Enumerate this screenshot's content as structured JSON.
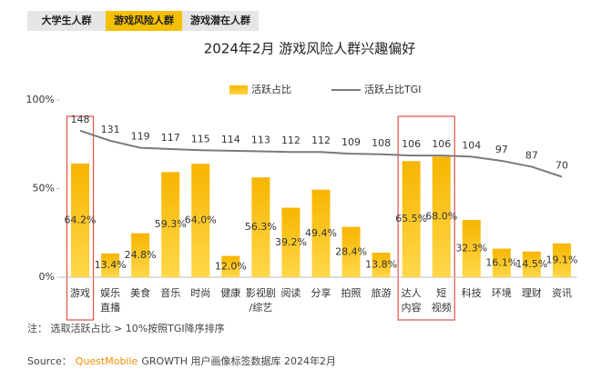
{
  "tabs": [
    "大学生人群",
    "游戏风险人群",
    "游戏潜在人群"
  ],
  "active_tab": 1,
  "chart_data": {
    "type": "bar-line",
    "title": "2024年2月 游戏风险人群兴趣偏好",
    "categories": [
      "游戏",
      "娱乐\n直播",
      "美食",
      "音乐",
      "时尚",
      "健康",
      "影视剧\n/综艺",
      "阅读",
      "分享",
      "拍照",
      "旅游",
      "达人\n内容",
      "短\n视频",
      "科技",
      "环境",
      "理财",
      "资讯"
    ],
    "series": [
      {
        "name": "活跃占比",
        "color": "#f7b500",
        "type": "bar",
        "values": [
          64.2,
          13.4,
          24.8,
          59.3,
          64.0,
          12.0,
          56.3,
          39.2,
          49.4,
          28.4,
          13.8,
          65.5,
          68.0,
          32.3,
          16.1,
          14.5,
          19.1
        ],
        "value_labels": [
          "64.2%",
          "13.4%",
          "24.8%",
          "59.3%",
          "64.0%",
          "12.0%",
          "56.3%",
          "39.2%",
          "49.4%",
          "28.4%",
          "13.8%",
          "65.5%",
          "68.0%",
          "32.3%",
          "16.1%",
          "14.5%",
          "19.1%"
        ]
      },
      {
        "name": "活跃占比TGI",
        "color": "#7a7a7a",
        "type": "line",
        "axis": "y2",
        "values": [
          148,
          131,
          119,
          117,
          115,
          114,
          113,
          112,
          112,
          109,
          108,
          106,
          106,
          104,
          97,
          87,
          70
        ]
      }
    ],
    "ylim": [
      0,
      100
    ],
    "yticks": [
      {
        "value": 0,
        "label": "0%"
      },
      {
        "value": 50,
        "label": "50%"
      },
      {
        "value": 100,
        "label": "100%"
      }
    ],
    "y2lim": [
      -100,
      200
    ],
    "grid": false,
    "legend": "top",
    "note": "注：  选取活跃占比 > 10%按照TGI降序排序",
    "source_label": "Source：",
    "source_brand": "QuestMobile",
    "source_text": "GROWTH 用户画像标签数据库 2024年2月"
  }
}
